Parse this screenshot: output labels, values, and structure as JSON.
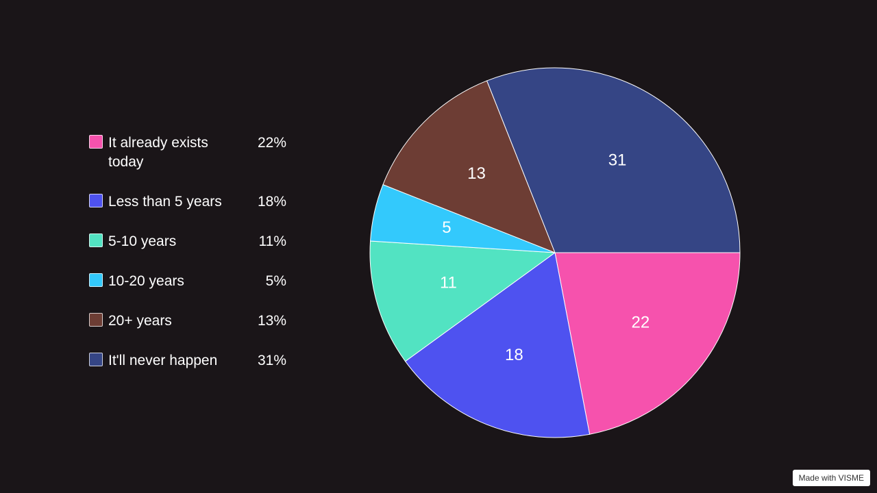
{
  "chart_data": {
    "type": "pie",
    "title": "",
    "slices": [
      {
        "label": "It already exists today",
        "value": 22,
        "percent": "22%",
        "color": "#f652ad"
      },
      {
        "label": "Less than 5 years",
        "value": 18,
        "percent": "18%",
        "color": "#4e52f0"
      },
      {
        "label": "5-10 years",
        "value": 11,
        "percent": "11%",
        "color": "#52e3c2"
      },
      {
        "label": "10-20 years",
        "value": 5,
        "percent": "5%",
        "color": "#33c9fc"
      },
      {
        "label": "20+ years",
        "value": 13,
        "percent": "13%",
        "color": "#6d3d34"
      },
      {
        "label": "It'll never happen",
        "value": 31,
        "percent": "31%",
        "color": "#354585"
      }
    ],
    "legend_position": "left",
    "start_angle": "3 o'clock, clockwise"
  },
  "watermark": "Made with VISME"
}
